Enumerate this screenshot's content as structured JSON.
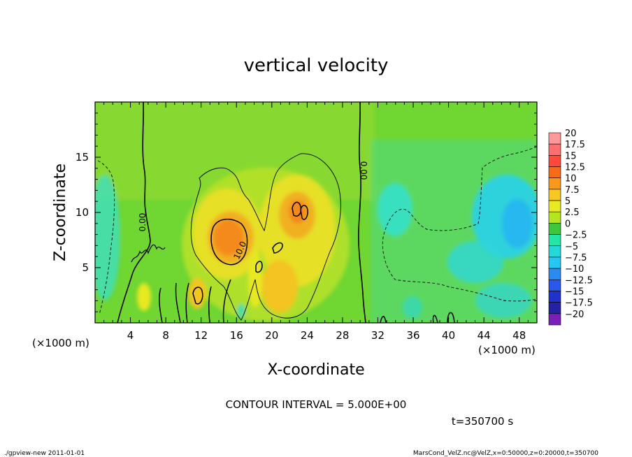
{
  "chart_data": {
    "type": "heatmap",
    "title": "vertical velocity",
    "xlabel": "X-coordinate",
    "ylabel": "Z-coordinate",
    "x_unit": "(×1000 m)",
    "y_unit": "(×1000 m)",
    "x_range": [
      0,
      50
    ],
    "y_range": [
      0,
      20
    ],
    "x_ticks": [
      4,
      8,
      12,
      16,
      20,
      24,
      28,
      32,
      36,
      40,
      44,
      48
    ],
    "y_ticks": [
      5,
      10,
      15
    ],
    "contour_interval_text": "CONTOUR INTERVAL = 5.000E+00",
    "time_label": "t=350700 s",
    "contour_labels": [
      {
        "text": "0.00",
        "x": 5.5,
        "z": 10.5
      },
      {
        "text": "10.0",
        "x": 16.3,
        "z": 6.8
      },
      {
        "text": "0.00",
        "x": 30.5,
        "z": 13.5
      }
    ],
    "features": [
      {
        "name": "updraft-west",
        "x": 15.3,
        "z": 7.7,
        "w": 13
      },
      {
        "name": "updraft-east",
        "x": 22.5,
        "z": 9.6,
        "w": 11.5
      },
      {
        "name": "updraft-low",
        "x": 21.0,
        "z": 3.0,
        "w": 9
      },
      {
        "name": "updraft-small",
        "x": 5.5,
        "z": 2.5,
        "w": 6.5
      },
      {
        "name": "updraft-12",
        "x": 11.5,
        "z": 2.8,
        "w": 8
      },
      {
        "name": "downdraft-west",
        "x": 0.8,
        "z": 9.5,
        "w": -5
      },
      {
        "name": "downdraft-east",
        "x": 47.0,
        "z": 9.0,
        "w": -8.5
      },
      {
        "name": "downdraft-east2",
        "x": 44.0,
        "z": 5.0,
        "w": -6
      },
      {
        "name": "downdraft-mid",
        "x": 33.5,
        "z": 10.5,
        "w": -6
      }
    ],
    "colorbar": {
      "labels": [
        "20",
        "17.5",
        "15",
        "12.5",
        "10",
        "7.5",
        "5",
        "2.5",
        "0",
        "−2.5",
        "−5",
        "−7.5",
        "−10",
        "−12.5",
        "−15",
        "−17.5",
        "−20"
      ],
      "colors": [
        "#ff9999",
        "#ff6f6f",
        "#ff4a3a",
        "#f66a18",
        "#f79a1c",
        "#f6c821",
        "#e8e824",
        "#b4e51e",
        "#3ec63e",
        "#24e4a6",
        "#25d8d8",
        "#26c7f0",
        "#2a8cf0",
        "#2859e8",
        "#1e33cc",
        "#2322a0",
        "#7b1fb8"
      ]
    }
  },
  "footer": {
    "left": "./gpview-new  2011-01-01",
    "right": "MarsCond_VelZ.nc@VelZ,x=0:50000,z=0:20000,t=350700"
  }
}
